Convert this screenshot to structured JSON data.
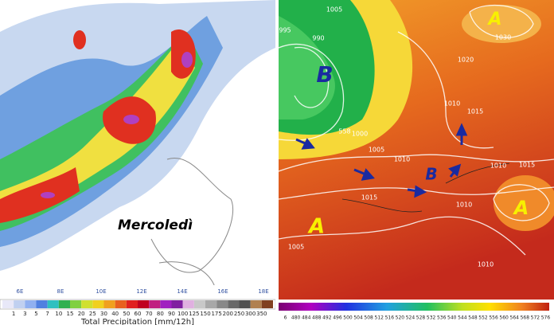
{
  "left_map": {
    "caption": "Mercoledì",
    "longitudes": [
      "6E",
      "8E",
      "10E",
      "12E",
      "14E",
      "16E",
      "18E"
    ],
    "colorbar": {
      "labels": [
        1,
        3,
        5,
        7,
        10,
        15,
        20,
        25,
        30,
        40,
        50,
        60,
        70,
        80,
        90,
        100,
        125,
        150,
        175,
        200,
        250,
        300,
        350
      ],
      "title": "Total Precipitation [mm/12h]"
    }
  },
  "right_map": {
    "pressure_systems": [
      "B",
      "A",
      "B",
      "A",
      "A"
    ],
    "isobars": [
      1005,
      995,
      990,
      1030,
      1020,
      1010,
      1015,
      1000,
      1005,
      1010,
      1015,
      1010,
      1015,
      1010,
      1010,
      1005
    ],
    "thickness_labels": [
      558
    ],
    "colorbar": {
      "labels": [
        "6",
        480,
        484,
        488,
        492,
        496,
        500,
        504,
        508,
        512,
        516,
        520,
        524,
        528,
        532,
        536,
        540,
        544,
        548,
        552,
        556,
        560,
        564,
        568,
        572,
        576
      ]
    }
  }
}
